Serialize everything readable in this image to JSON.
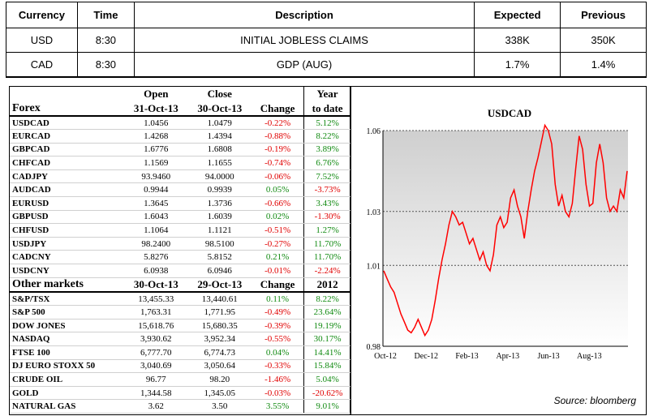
{
  "calendar": {
    "headers": [
      "Currency",
      "Time",
      "Description",
      "Expected",
      "Previous"
    ],
    "rows": [
      [
        "USD",
        "8:30",
        "INITIAL JOBLESS CLAIMS",
        "338K",
        "350K"
      ],
      [
        "CAD",
        "8:30",
        "GDP (AUG)",
        "1.7%",
        "1.4%"
      ]
    ]
  },
  "forex": {
    "header_top": [
      "",
      "Open",
      "Close",
      "",
      "Year"
    ],
    "header_bottom": [
      "Forex",
      "31-Oct-13",
      "30-Oct-13",
      "Change",
      "to date"
    ],
    "rows": [
      {
        "name": "USDCAD",
        "open": "1.0456",
        "close": "1.0479",
        "change": "-0.22%",
        "ytd": "5.12%"
      },
      {
        "name": "EURCAD",
        "open": "1.4268",
        "close": "1.4394",
        "change": "-0.88%",
        "ytd": "8.22%"
      },
      {
        "name": "GBPCAD",
        "open": "1.6776",
        "close": "1.6808",
        "change": "-0.19%",
        "ytd": "3.89%"
      },
      {
        "name": "CHFCAD",
        "open": "1.1569",
        "close": "1.1655",
        "change": "-0.74%",
        "ytd": "6.76%"
      },
      {
        "name": "CADJPY",
        "open": "93.9460",
        "close": "94.0000",
        "change": "-0.06%",
        "ytd": "7.52%"
      },
      {
        "name": "AUDCAD",
        "open": "0.9944",
        "close": "0.9939",
        "change": "0.05%",
        "ytd": "-3.73%"
      },
      {
        "name": "EURUSD",
        "open": "1.3645",
        "close": "1.3736",
        "change": "-0.66%",
        "ytd": "3.43%"
      },
      {
        "name": "GBPUSD",
        "open": "1.6043",
        "close": "1.6039",
        "change": "0.02%",
        "ytd": "-1.30%"
      },
      {
        "name": "CHFUSD",
        "open": "1.1064",
        "close": "1.1121",
        "change": "-0.51%",
        "ytd": "1.27%"
      },
      {
        "name": "USDJPY",
        "open": "98.2400",
        "close": "98.5100",
        "change": "-0.27%",
        "ytd": "11.70%"
      },
      {
        "name": "CADCNY",
        "open": "5.8276",
        "close": "5.8152",
        "change": "0.21%",
        "ytd": "11.70%"
      },
      {
        "name": "USDCNY",
        "open": "6.0938",
        "close": "6.0946",
        "change": "-0.01%",
        "ytd": "-2.24%"
      }
    ]
  },
  "other": {
    "header": [
      "Other markets",
      "30-Oct-13",
      "29-Oct-13",
      "Change",
      "2012"
    ],
    "rows": [
      {
        "name": "S&P/TSX",
        "open": "13,455.33",
        "close": "13,440.61",
        "change": "0.11%",
        "ytd": "8.22%"
      },
      {
        "name": "S&P 500",
        "open": "1,763.31",
        "close": "1,771.95",
        "change": "-0.49%",
        "ytd": "23.64%"
      },
      {
        "name": "DOW JONES",
        "open": "15,618.76",
        "close": "15,680.35",
        "change": "-0.39%",
        "ytd": "19.19%"
      },
      {
        "name": "NASDAQ",
        "open": "3,930.62",
        "close": "3,952.34",
        "change": "-0.55%",
        "ytd": "30.17%"
      },
      {
        "name": "FTSE 100",
        "open": "6,777.70",
        "close": "6,774.73",
        "change": "0.04%",
        "ytd": "14.41%"
      },
      {
        "name": "DJ EURO STOXX 50",
        "open": "3,040.69",
        "close": "3,050.64",
        "change": "-0.33%",
        "ytd": "15.84%"
      },
      {
        "name": "CRUDE OIL",
        "open": "96.77",
        "close": "98.20",
        "change": "-1.46%",
        "ytd": "5.04%"
      },
      {
        "name": "GOLD",
        "open": "1,344.58",
        "close": "1,345.05",
        "change": "-0.03%",
        "ytd": "-20.62%"
      },
      {
        "name": "NATURAL GAS",
        "open": "3.62",
        "close": "3.50",
        "change": "3.55%",
        "ytd": "9.01%"
      }
    ]
  },
  "colors": {
    "negative": "#e00000",
    "positive": "#118a11",
    "line": "#ff0000"
  },
  "chart_data": {
    "type": "line",
    "title": "USDCAD",
    "xlabel": "",
    "ylabel": "",
    "x_ticks": [
      "Oct-12",
      "Dec-12",
      "Feb-13",
      "Apr-13",
      "Jun-13",
      "Aug-13"
    ],
    "y_ticks": [
      "0.98",
      "1.01",
      "1.03",
      "1.06"
    ],
    "ylim": [
      0.98,
      1.06
    ],
    "grid": "horizontal dashed",
    "source": "Source: bloomberg",
    "series": [
      {
        "values": [
          1.008,
          1.005,
          1.002,
          1.0,
          0.996,
          0.992,
          0.989,
          0.986,
          0.985,
          0.987,
          0.99,
          0.987,
          0.984,
          0.986,
          0.99,
          0.997,
          1.005,
          1.012,
          1.018,
          1.025,
          1.03,
          1.028,
          1.025,
          1.026,
          1.022,
          1.018,
          1.02,
          1.016,
          1.012,
          1.015,
          1.01,
          1.008,
          1.014,
          1.025,
          1.028,
          1.024,
          1.026,
          1.035,
          1.038,
          1.032,
          1.028,
          1.02,
          1.03,
          1.038,
          1.045,
          1.05,
          1.056,
          1.062,
          1.06,
          1.055,
          1.04,
          1.032,
          1.036,
          1.03,
          1.028,
          1.033,
          1.046,
          1.058,
          1.053,
          1.04,
          1.032,
          1.033,
          1.048,
          1.055,
          1.048,
          1.035,
          1.03,
          1.032,
          1.03,
          1.038,
          1.035,
          1.045
        ]
      }
    ]
  }
}
